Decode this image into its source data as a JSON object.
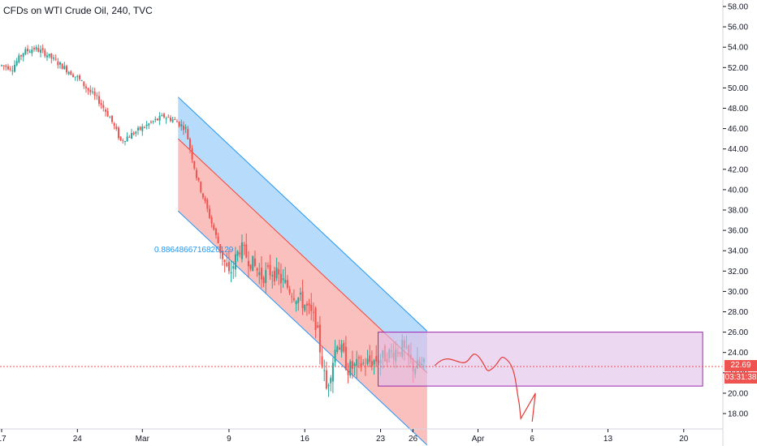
{
  "header": {
    "title": "CFDs on WTI Crude Oil, 240, TVC"
  },
  "annotation": {
    "correlation_label": "0.8864866716826129"
  },
  "price_scale": {
    "last_price": "22.69",
    "countdown": "03:31:38",
    "last_price_color": "#ef5350"
  },
  "colors": {
    "background": "#ffffff",
    "up_candle": "#26a69a",
    "down_candle": "#ef5350",
    "upper_channel_fill": "#90caf9",
    "lower_channel_fill": "#f8a5a2",
    "channel_line": "#2196f3",
    "midline": "#f44336",
    "box_fill": "#e1bee7",
    "box_border": "#9c27b0",
    "sketch_line": "#e53935",
    "grid": "#f0f3fa"
  },
  "chart_data": {
    "type": "candlestick",
    "symbol": "CFDs on WTI Crude Oil",
    "interval": "240",
    "source": "TVC",
    "y_range": [
      16.5,
      59
    ],
    "x_tick_labels": [
      "17",
      "24",
      "Mar",
      "9",
      "16",
      "23",
      "26",
      "Apr",
      "6",
      "13",
      "20"
    ],
    "y_tick_labels": [
      "18.00",
      "20.00",
      "22.00",
      "24.00",
      "26.00",
      "28.00",
      "30.00",
      "32.00",
      "34.00",
      "36.00",
      "38.00",
      "40.00",
      "42.00",
      "44.00",
      "46.00",
      "48.00",
      "50.00",
      "52.00",
      "54.00",
      "56.00",
      "58.00"
    ],
    "close_path": [
      [
        "Feb 17",
        52.2
      ],
      [
        "Feb 18",
        52.0
      ],
      [
        "Feb 19",
        53.5
      ],
      [
        "Feb 20",
        53.9
      ],
      [
        "Feb 21",
        53.4
      ],
      [
        "Feb 24",
        51.0
      ],
      [
        "Feb 25",
        49.8
      ],
      [
        "Feb 26",
        48.7
      ],
      [
        "Feb 27",
        47.1
      ],
      [
        "Feb 28",
        44.8
      ],
      [
        "Mar 2",
        46.7
      ],
      [
        "Mar 3",
        47.2
      ],
      [
        "Mar 4",
        46.8
      ],
      [
        "Mar 5",
        46.0
      ],
      [
        "Mar 6",
        41.3
      ],
      [
        "Mar 9",
        31.5
      ],
      [
        "Mar 10",
        34.3
      ],
      [
        "Mar 11",
        33.0
      ],
      [
        "Mar 12",
        31.5
      ],
      [
        "Mar 13",
        32.0
      ],
      [
        "Mar 16",
        28.7
      ],
      [
        "Mar 17",
        27.0
      ],
      [
        "Mar 18",
        20.4
      ],
      [
        "Mar 19",
        25.2
      ],
      [
        "Mar 20",
        22.4
      ],
      [
        "Mar 23",
        23.4
      ],
      [
        "Mar 24",
        24.0
      ],
      [
        "Mar 25",
        24.5
      ],
      [
        "Mar 26",
        22.6
      ],
      [
        "Mar 27",
        22.7
      ]
    ],
    "last_price": 22.69,
    "regression_channel": {
      "start": [
        "Mar 4",
        45.0
      ],
      "end": [
        "Mar 27",
        22.0
      ],
      "upper_offset": 4.1,
      "lower_offset": -7.1,
      "correlation": 0.8864866716826129
    },
    "box": {
      "from": "Mar 23",
      "to": "Apr 21",
      "top": 26.0,
      "bottom": 20.7
    },
    "legend": "none",
    "grid": false
  }
}
